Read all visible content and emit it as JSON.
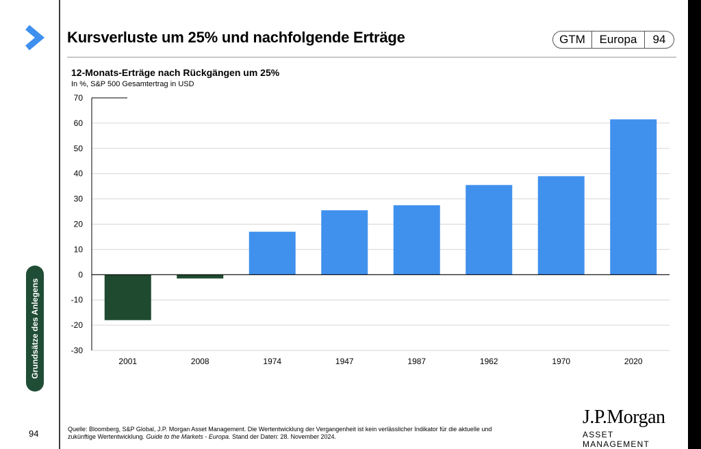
{
  "header": {
    "title": "Kursverluste um 25% und nachfolgende Erträge",
    "badge": {
      "gtm": "GTM",
      "region": "Europa",
      "page": "94"
    }
  },
  "sidebar": {
    "tab_label": "Grundsätze des Anlegens",
    "page_number": "94",
    "accent_color": "#3f8fef"
  },
  "subtitle": "12-Monats-Erträge nach Rückgängen um 25%",
  "unit_note": "In %, S&P 500 Gesamtertrag in USD",
  "footer": {
    "source_line1": "Quelle: Bloomberg, S&P Global, J.P. Morgan Asset Management. Die Wertentwicklung der Vergangenheit ist kein verlässlicher Indikator für die aktuelle und",
    "source_line2_start": "zukünftige Wertentwicklung. ",
    "source_line2_italic": "Guide to the Markets - Europa.",
    "source_line2_end": " Stand der Daten: 28. November 2024.",
    "logo_line1": "J.P.Morgan",
    "logo_line2": "ASSET MANAGEMENT"
  },
  "chart_data": {
    "type": "bar",
    "categories": [
      "2001",
      "2008",
      "1974",
      "1947",
      "1987",
      "1962",
      "1970",
      "2020"
    ],
    "values": [
      -18,
      -1.5,
      17,
      25.5,
      27.5,
      35.5,
      39,
      61.5
    ],
    "ylim": [
      -30,
      70
    ],
    "yticks": [
      "70",
      "60",
      "50",
      "40",
      "30",
      "20",
      "10",
      "0",
      "-10",
      "-20",
      "-30"
    ],
    "grid": true,
    "colors": {
      "negative": "#1f4a30",
      "positive": "#4091ed"
    }
  }
}
